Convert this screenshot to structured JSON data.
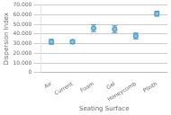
{
  "chart_data": {
    "type": "errorbar",
    "categories": [
      "Air",
      "Current",
      "Foam",
      "Gel",
      "Honeycomb",
      "Plinth"
    ],
    "values": [
      32000,
      32000,
      46000,
      45000,
      38000,
      61000
    ],
    "errors": [
      2500,
      2000,
      3500,
      3500,
      3000,
      2500
    ],
    "xlabel": "Seating Surface",
    "ylabel": "Dispersion Index",
    "ylim": [
      0,
      70000
    ],
    "yticks": [
      0,
      {
        "value": 10000,
        "label": "10.000"
      },
      {
        "value": 20000,
        "label": "20.000"
      },
      {
        "value": 30000,
        "label": "30.000"
      },
      {
        "value": 40000,
        "label": "40.000"
      },
      {
        "value": 50000,
        "label": "50.000"
      },
      {
        "value": 60000,
        "label": "60.000"
      },
      {
        "value": 70000,
        "label": "70.000"
      }
    ],
    "color": "#7ec8e3",
    "grid": true
  }
}
